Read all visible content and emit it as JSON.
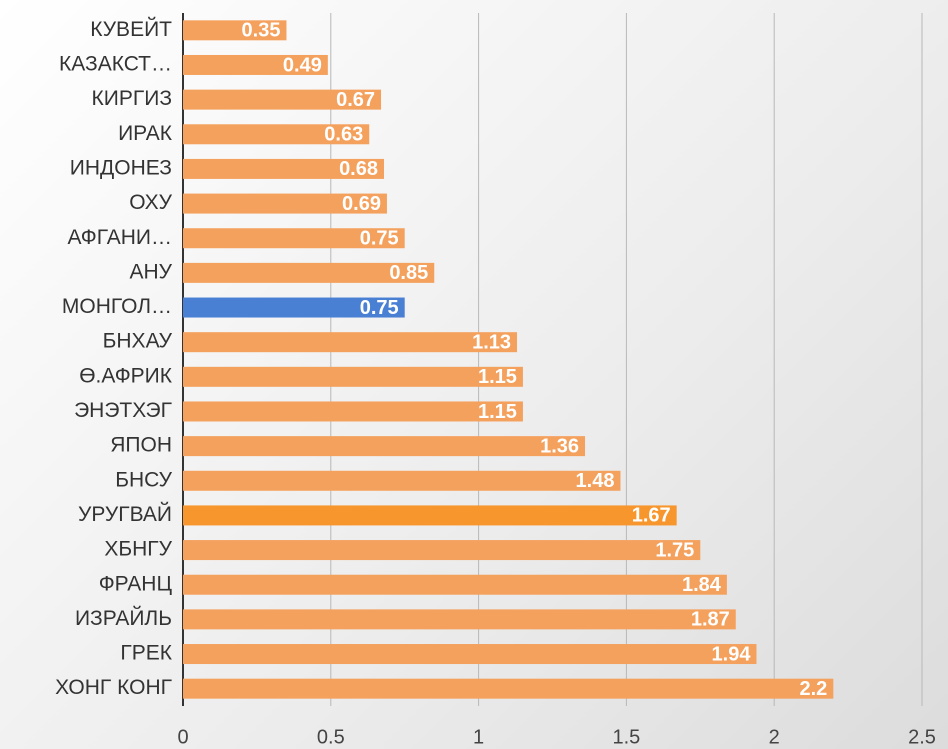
{
  "chart_data": {
    "type": "bar",
    "orientation": "horizontal",
    "categories": [
      "КУВЕЙТ",
      "КАЗАКСТ…",
      "КИРГИЗ",
      "ИРАК",
      "ИНДОНЕЗ",
      "ОХУ",
      "АФГАНИ…",
      "АНУ",
      "МОНГОЛ…",
      "БНХАУ",
      "Ө.АФРИК",
      "ЭНЭТХЭГ",
      "ЯПОН",
      "БНСУ",
      "УРУГВАЙ",
      "ХБНГУ",
      "ФРАНЦ",
      "ИЗРАЙЛЬ",
      "ГРЕК",
      "ХОНГ КОНГ"
    ],
    "values": [
      0.35,
      0.49,
      0.67,
      0.63,
      0.68,
      0.69,
      0.75,
      0.85,
      0.75,
      1.13,
      1.15,
      1.15,
      1.36,
      1.48,
      1.67,
      1.75,
      1.84,
      1.87,
      1.94,
      2.2
    ],
    "colors": [
      "#f5a15e",
      "#f5a15e",
      "#f5a15e",
      "#f5a15e",
      "#f5a15e",
      "#f5a15e",
      "#f5a15e",
      "#f5a15e",
      "#4a80d4",
      "#f5a15e",
      "#f5a15e",
      "#f5a15e",
      "#f5a15e",
      "#f5a15e",
      "#f7962d",
      "#f5a15e",
      "#f5a15e",
      "#f5a15e",
      "#f5a15e",
      "#f5a15e"
    ],
    "xlim": [
      0,
      2.5
    ],
    "xticks": [
      0,
      0.5,
      1,
      1.5,
      2,
      2.5
    ],
    "grid": true
  }
}
